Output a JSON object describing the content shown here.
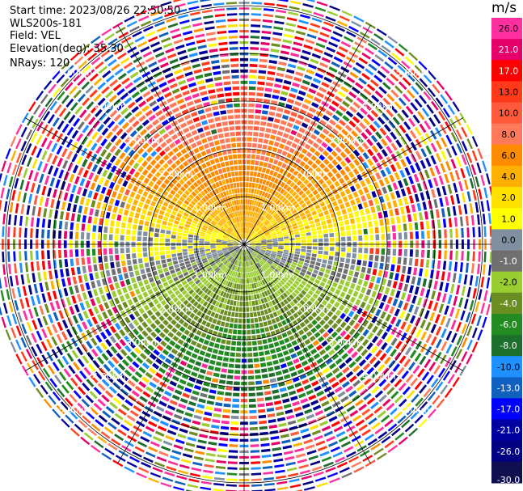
{
  "header": {
    "start_time": "Start time: 2023/08/26 22:50:50",
    "instrument": "WLS200s-181",
    "field": "Field: VEL",
    "elevation": "Elevation(deg): 35.30",
    "nrays": "NRays: 120"
  },
  "colorbar": {
    "unit": "m/s",
    "ticks": [
      "26.0",
      "21.0",
      "17.0",
      "13.0",
      "10.0",
      "8.0",
      "6.0",
      "4.0",
      "2.0",
      "1.0",
      "0.0",
      "-1.0",
      "-2.0",
      "-4.0",
      "-6.0",
      "-8.0",
      "-10.0",
      "-13.0",
      "-17.0",
      "-21.0",
      "-26.0",
      "-30.0"
    ],
    "colors": [
      "#ff2fa0",
      "#e8006a",
      "#ff0000",
      "#ff3a1a",
      "#ff5a3c",
      "#ff7a5a",
      "#ff8c00",
      "#ffb000",
      "#ffe000",
      "#ffff00",
      "#8090a0",
      "#707070",
      "#9acd32",
      "#6b8e23",
      "#228b22",
      "#1e6e2e",
      "#1e90ff",
      "#1060c0",
      "#0000ff",
      "#0000a0",
      "#000080",
      "#101050"
    ]
  },
  "chart_data": {
    "type": "heatmap",
    "projection": "polar PPI",
    "nrays": 120,
    "range_rings_km": [
      1.0,
      2.0,
      3.0,
      4.0,
      5.0
    ],
    "range_ring_labels": [
      "1.00km",
      "2.00km",
      "3.00km",
      "4.00km",
      "5.00km"
    ],
    "max_range_km": 5.3,
    "velocity_range": [
      -30.0,
      26.0
    ],
    "pattern": "near-range: northern half positive (orange/yellow, 0 to 8 m/s), southern half negative (green/blue, -2 to -10 m/s), grey zero band along east-west axis; far range noisy multicolour"
  }
}
